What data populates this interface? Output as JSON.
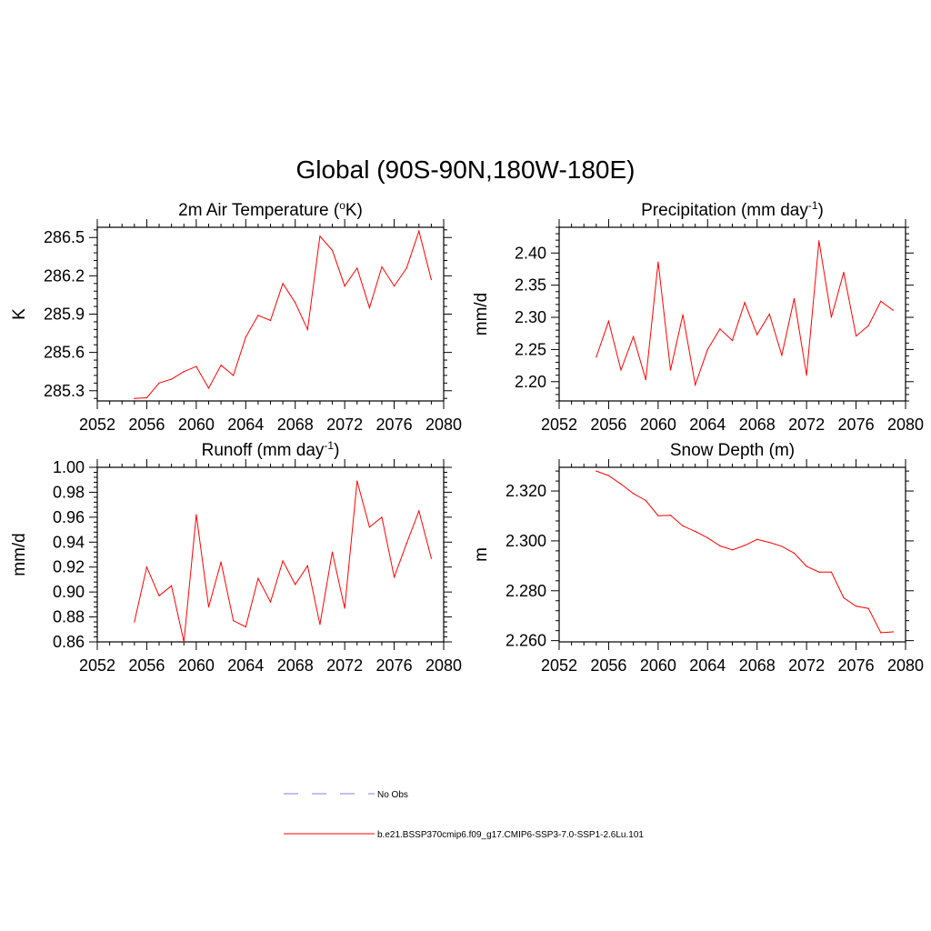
{
  "title": "Global (90S-90N,180W-180E)",
  "legend": [
    {
      "label": "No Obs",
      "color": "#9999ee",
      "dash": true
    },
    {
      "label": "b.e21.BSSP370cmip6.f09_g17.CMIP6-SSP3-7.0-SSP1-2.6Lu.101",
      "color": "#ff0000",
      "dash": false
    }
  ],
  "chart_data": [
    {
      "type": "line",
      "title_main": "2m Air Temperature (",
      "title_sup": "o",
      "title_tail": "K)",
      "ylabel": "K",
      "xlim": [
        2052,
        2080
      ],
      "ylim": [
        285.22,
        286.58
      ],
      "xticks": [
        2052,
        2056,
        2060,
        2064,
        2068,
        2072,
        2076,
        2080
      ],
      "yticks": [
        285.3,
        285.6,
        285.9,
        286.2,
        286.5
      ],
      "ytick_labels": [
        "285.3",
        "285.6",
        "285.9",
        "286.2",
        "286.5"
      ],
      "x": [
        2055,
        2056,
        2057,
        2058,
        2059,
        2060,
        2061,
        2062,
        2063,
        2064,
        2065,
        2066,
        2067,
        2068,
        2069,
        2070,
        2071,
        2072,
        2073,
        2074,
        2075,
        2076,
        2077,
        2078,
        2079
      ],
      "series": [
        {
          "values": [
            285.24,
            285.245,
            285.36,
            285.39,
            285.45,
            285.49,
            285.32,
            285.5,
            285.42,
            285.72,
            285.89,
            285.85,
            286.14,
            285.99,
            285.78,
            286.51,
            286.4,
            286.12,
            286.26,
            285.95,
            286.27,
            286.12,
            286.26,
            286.55,
            286.17
          ],
          "color": "#ff0000"
        }
      ]
    },
    {
      "type": "line",
      "title_main": "Precipitation (mm day",
      "title_sup": "-1",
      "title_tail": ")",
      "ylabel": "mm/d",
      "xlim": [
        2052,
        2080
      ],
      "ylim": [
        2.17,
        2.44
      ],
      "xticks": [
        2052,
        2056,
        2060,
        2064,
        2068,
        2072,
        2076,
        2080
      ],
      "yticks": [
        2.2,
        2.25,
        2.3,
        2.35,
        2.4
      ],
      "ytick_labels": [
        "2.20",
        "2.25",
        "2.30",
        "2.35",
        "2.40"
      ],
      "x": [
        2055,
        2056,
        2057,
        2058,
        2059,
        2060,
        2061,
        2062,
        2063,
        2064,
        2065,
        2066,
        2067,
        2068,
        2069,
        2070,
        2071,
        2072,
        2073,
        2074,
        2075,
        2076,
        2077,
        2078,
        2079
      ],
      "series": [
        {
          "values": [
            2.238,
            2.294,
            2.218,
            2.27,
            2.203,
            2.386,
            2.218,
            2.304,
            2.195,
            2.25,
            2.282,
            2.264,
            2.323,
            2.273,
            2.305,
            2.241,
            2.329,
            2.21,
            2.419,
            2.3,
            2.37,
            2.271,
            2.287,
            2.325,
            2.311
          ],
          "color": "#ff0000"
        }
      ]
    },
    {
      "type": "line",
      "title_main": "Runoff (mm day",
      "title_sup": "-1",
      "title_tail": ")",
      "ylabel": "mm/d",
      "xlim": [
        2052,
        2080
      ],
      "ylim": [
        0.86,
        1.0
      ],
      "xticks": [
        2052,
        2056,
        2060,
        2064,
        2068,
        2072,
        2076,
        2080
      ],
      "yticks": [
        0.86,
        0.88,
        0.9,
        0.92,
        0.94,
        0.96,
        0.98,
        1.0
      ],
      "ytick_labels": [
        "0.86",
        "0.88",
        "0.90",
        "0.92",
        "0.94",
        "0.96",
        "0.98",
        "1.00"
      ],
      "x": [
        2055,
        2056,
        2057,
        2058,
        2059,
        2060,
        2061,
        2062,
        2063,
        2064,
        2065,
        2066,
        2067,
        2068,
        2069,
        2070,
        2071,
        2072,
        2073,
        2074,
        2075,
        2076,
        2077,
        2078,
        2079
      ],
      "series": [
        {
          "values": [
            0.876,
            0.92,
            0.897,
            0.905,
            0.86,
            0.962,
            0.888,
            0.924,
            0.877,
            0.872,
            0.911,
            0.892,
            0.925,
            0.906,
            0.921,
            0.874,
            0.932,
            0.887,
            0.989,
            0.952,
            0.96,
            0.912,
            0.939,
            0.965,
            0.927
          ],
          "color": "#ff0000"
        }
      ]
    },
    {
      "type": "line",
      "title_main": "Snow Depth (m)",
      "title_sup": "",
      "title_tail": "",
      "ylabel": "m",
      "xlim": [
        2052,
        2080
      ],
      "ylim": [
        2.2595,
        2.3295
      ],
      "xticks": [
        2052,
        2056,
        2060,
        2064,
        2068,
        2072,
        2076,
        2080
      ],
      "yticks": [
        2.26,
        2.28,
        2.3,
        2.32
      ],
      "ytick_labels": [
        "2.260",
        "2.280",
        "2.300",
        "2.320"
      ],
      "x": [
        2055,
        2056,
        2057,
        2058,
        2059,
        2060,
        2061,
        2062,
        2063,
        2064,
        2065,
        2066,
        2067,
        2068,
        2069,
        2070,
        2071,
        2072,
        2073,
        2074,
        2075,
        2076,
        2077,
        2078,
        2079
      ],
      "series": [
        {
          "values": [
            2.328,
            2.3262,
            2.3228,
            2.319,
            2.3162,
            2.3101,
            2.3103,
            2.306,
            2.3038,
            2.3012,
            2.298,
            2.2964,
            2.2982,
            2.3006,
            2.2994,
            2.2978,
            2.2951,
            2.2898,
            2.2875,
            2.2875,
            2.2772,
            2.2738,
            2.2729,
            2.2632,
            2.2635
          ],
          "color": "#ff0000"
        }
      ]
    }
  ]
}
